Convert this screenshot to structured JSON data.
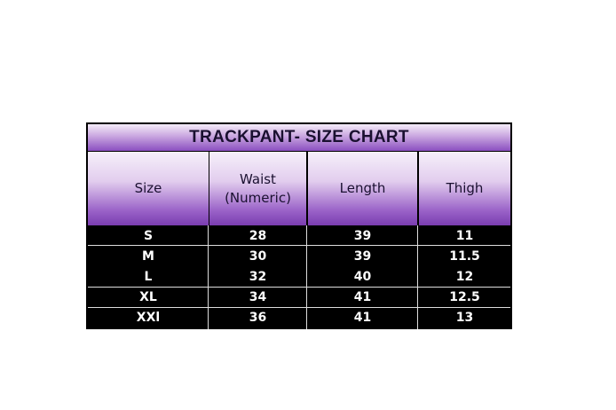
{
  "title": "TRACKPANT- SIZE CHART",
  "headers": [
    "Size",
    "Waist\n(Numeric)",
    "Length",
    "Thigh"
  ],
  "rows": [
    [
      "S",
      "28",
      "39",
      "11"
    ],
    [
      "M",
      "30",
      "39",
      "11.5"
    ],
    [
      "L",
      "32",
      "40",
      "12"
    ],
    [
      "XL",
      "34",
      "41",
      "12.5"
    ],
    [
      "XXl",
      "36",
      "41",
      "13"
    ]
  ],
  "colors": {
    "header_purple": "#7a3db0",
    "body_background": "#000000",
    "body_text": "#ffffff"
  }
}
